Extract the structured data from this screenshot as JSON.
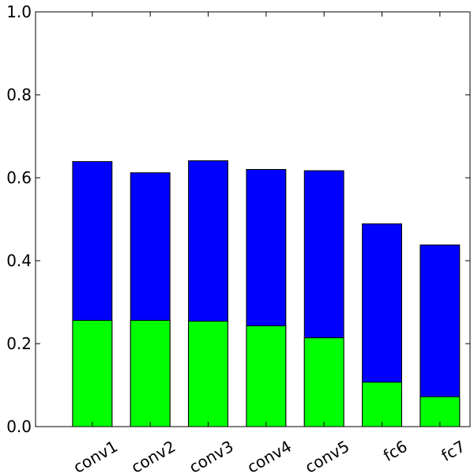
{
  "chart_data": {
    "type": "bar",
    "stacked": false,
    "overlaid": true,
    "categories": [
      "conv1",
      "conv2",
      "conv3",
      "conv4",
      "conv5",
      "fc6",
      "fc7"
    ],
    "series": [
      {
        "values": [
          0.639,
          0.612,
          0.641,
          0.62,
          0.617,
          0.489,
          0.438
        ],
        "color": "#0000ff"
      },
      {
        "values": [
          0.256,
          0.256,
          0.254,
          0.243,
          0.214,
          0.107,
          0.072
        ],
        "color": "#00ff00"
      }
    ],
    "ylim": [
      0,
      1.0
    ],
    "yticks": [
      "0.0",
      "0.2",
      "0.4",
      "0.6",
      "0.8",
      "1.0"
    ],
    "xtick_rotation": -30,
    "grid": false,
    "title": "",
    "xlabel": "",
    "ylabel": ""
  }
}
